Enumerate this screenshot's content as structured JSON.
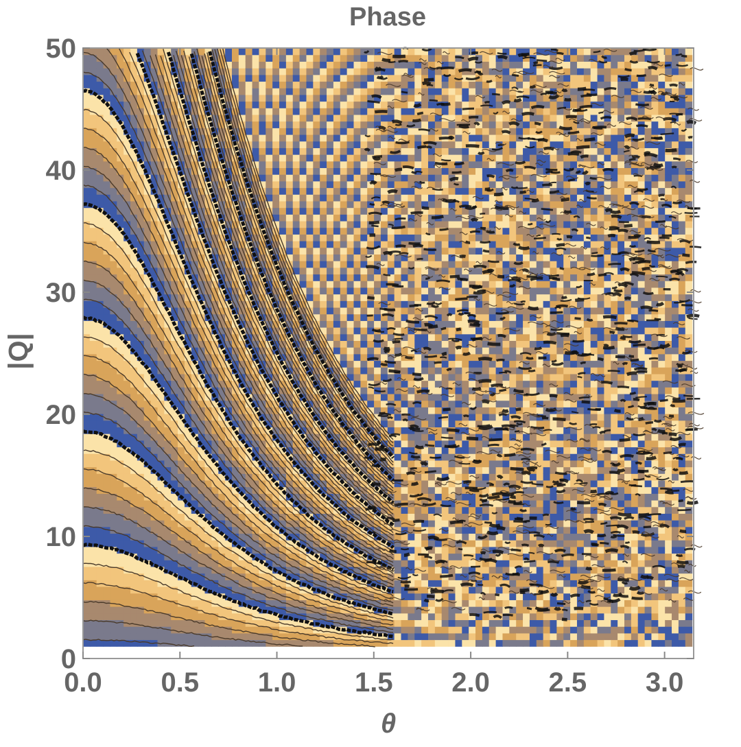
{
  "chart_data": {
    "type": "heatmap",
    "subtype": "contour",
    "title": "Phase",
    "xlabel": "θ",
    "ylabel": "|Q|",
    "xlim": [
      0.0,
      3.15
    ],
    "ylim": [
      0,
      50
    ],
    "x_domain": [
      0.0,
      3.14159
    ],
    "y_domain": [
      1,
      50
    ],
    "x_ticks": [
      0.0,
      0.5,
      1.0,
      1.5,
      2.0,
      2.5,
      3.0
    ],
    "x_tick_labels": [
      "0.0",
      "0.5",
      "1.0",
      "1.5",
      "2.0",
      "2.5",
      "3.0"
    ],
    "y_ticks": [
      0,
      10,
      20,
      30,
      40,
      50
    ],
    "y_tick_labels": [
      "0",
      "10",
      "20",
      "30",
      "40",
      "50"
    ],
    "color_scale": [
      "#3d5aa8",
      "#7a7a8c",
      "#a8896e",
      "#d9a45a",
      "#f2c57c",
      "#fbe3a9"
    ],
    "contour_line_color": "#4a3a2a",
    "discontinuity_color": "#111111",
    "phase_wrap_boundaries": [
      {
        "theta": 0.0,
        "Q": 50.0
      },
      {
        "theta": 0.0,
        "Q": 40.8
      },
      {
        "theta": 0.0,
        "Q": 31.5
      },
      {
        "theta": 0.0,
        "Q": 22.0
      },
      {
        "theta": 0.0,
        "Q": 13.0
      },
      {
        "theta": 0.0,
        "Q": 3.8
      }
    ],
    "noisy_region_theta_start": 1.5,
    "noisy_region_theta_end": 3.14,
    "grid": false,
    "legend": "none"
  }
}
